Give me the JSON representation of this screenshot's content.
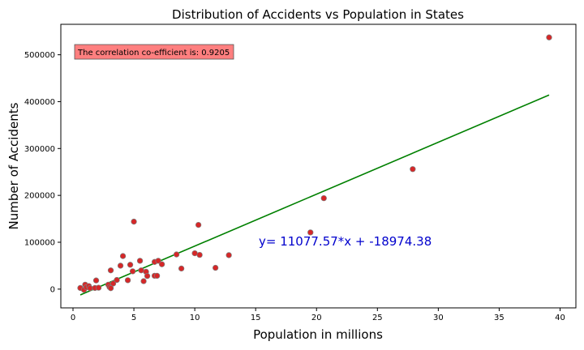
{
  "chart_data": {
    "type": "scatter",
    "title": "Distribution of Accidents vs Population in States",
    "xlabel": "Population in millions",
    "ylabel": "Number of Accidents",
    "xlim": [
      -1,
      41.3
    ],
    "ylim": [
      -40000,
      565000
    ],
    "xticks": [
      0,
      5,
      10,
      15,
      20,
      25,
      30,
      35,
      40
    ],
    "yticks": [
      0,
      100000,
      200000,
      300000,
      400000,
      500000
    ],
    "grid": false,
    "points_color": "#d62728",
    "points_edge": "#7f7f7f",
    "line_color": "#008000",
    "points": [
      [
        0.6,
        2500
      ],
      [
        0.9,
        -1500
      ],
      [
        1.0,
        9500
      ],
      [
        1.1,
        4000
      ],
      [
        1.3,
        6500
      ],
      [
        1.4,
        2000
      ],
      [
        1.8,
        2500
      ],
      [
        1.9,
        18500
      ],
      [
        2.1,
        3000
      ],
      [
        2.9,
        9500
      ],
      [
        3.0,
        4500
      ],
      [
        3.1,
        2000
      ],
      [
        3.1,
        40000
      ],
      [
        3.3,
        12000
      ],
      [
        3.6,
        19500
      ],
      [
        3.9,
        50000
      ],
      [
        4.1,
        70500
      ],
      [
        4.5,
        19000
      ],
      [
        4.7,
        52000
      ],
      [
        4.9,
        38000
      ],
      [
        5.0,
        144000
      ],
      [
        5.5,
        60500
      ],
      [
        5.6,
        40000
      ],
      [
        5.8,
        17000
      ],
      [
        6.0,
        37000
      ],
      [
        6.1,
        28000
      ],
      [
        6.7,
        28500
      ],
      [
        6.7,
        58000
      ],
      [
        6.9,
        28500
      ],
      [
        7.0,
        60500
      ],
      [
        7.3,
        53000
      ],
      [
        8.5,
        74000
      ],
      [
        8.9,
        44000
      ],
      [
        10.0,
        76500
      ],
      [
        10.3,
        137000
      ],
      [
        10.4,
        73000
      ],
      [
        11.7,
        45500
      ],
      [
        12.8,
        72500
      ],
      [
        19.5,
        121000
      ],
      [
        20.6,
        194000
      ],
      [
        27.9,
        256000
      ],
      [
        39.1,
        537000
      ]
    ],
    "regression": {
      "slope": 11077.57,
      "intercept": -18974.38,
      "x_range": [
        0.6,
        39.1
      ]
    },
    "annotations": {
      "correlation": "The correlation co-efficient is: 0.9205",
      "equation": "y= 11077.57*x + -18974.38",
      "correlation_box_color": "#ff7f7f",
      "equation_color": "#0000cd"
    }
  }
}
